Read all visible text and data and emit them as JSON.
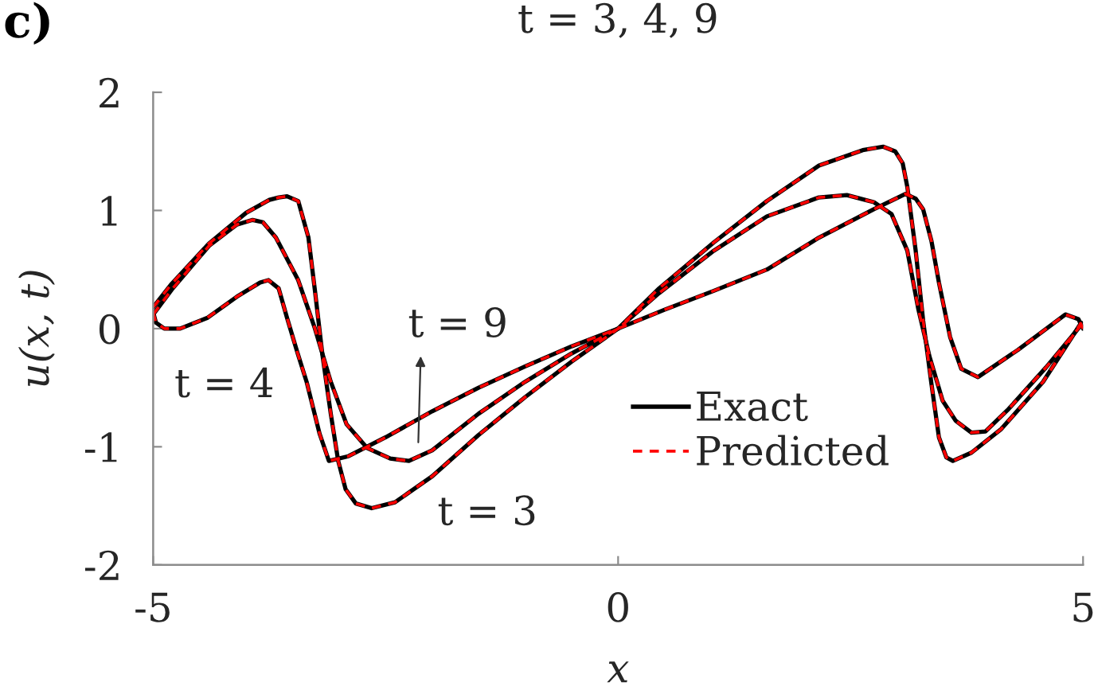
{
  "chart_data": {
    "type": "line",
    "title": "t = 3, 4, 9",
    "xlabel": "x",
    "ylabel": "u(x, t)",
    "xlim": [
      -5,
      5
    ],
    "xticks": [
      -5,
      0,
      5
    ],
    "ylim": [
      -2,
      2
    ],
    "yticks": [
      -2,
      -1,
      0,
      1,
      2
    ],
    "legend": "bottom",
    "annotations": [
      {
        "text": "t = 9",
        "x": -2.15,
        "y": -1.0
      },
      {
        "text": "t = 4",
        "x": -4.71,
        "y": 0.0
      },
      {
        "text": "t = 3",
        "x": -2.0,
        "y": -1.25
      },
      "c)"
    ],
    "series": [
      {
        "name": "Exact",
        "color": "#000000",
        "line_style": "solid",
        "x": [
          -5,
          -4.8,
          -4.4,
          -4.0,
          -3.75,
          -3.65,
          -3.56,
          -3.44,
          -3.33,
          -3.26,
          -3.18,
          -3.09,
          -3.01,
          -2.93,
          -2.82,
          -2.65,
          -2.4,
          -2.0,
          -1.5,
          -1.0,
          -0.5,
          0,
          0.44,
          1.03,
          1.6,
          2.16,
          2.63,
          2.85,
          2.98,
          3.06,
          3.11,
          3.2,
          3.28,
          3.37,
          3.45,
          3.53,
          3.6,
          3.8,
          4.12,
          4.57,
          4.98
        ],
        "values": [
          0.18,
          0.38,
          0.72,
          0.98,
          1.09,
          1.11,
          1.12,
          1.08,
          0.77,
          0.32,
          -0.22,
          -0.72,
          -1.12,
          -1.36,
          -1.48,
          -1.52,
          -1.47,
          -1.25,
          -0.9,
          -0.58,
          -0.28,
          0,
          0.34,
          0.73,
          1.08,
          1.38,
          1.51,
          1.54,
          1.5,
          1.4,
          1.2,
          0.66,
          0.07,
          -0.47,
          -0.92,
          -1.09,
          -1.12,
          -1.05,
          -0.85,
          -0.45,
          0.05
        ]
      },
      {
        "color": "#000000",
        "line_style": "solid",
        "x": [
          -5,
          -4.97,
          -4.88,
          -4.71,
          -4.42,
          -4.1,
          -3.85,
          -3.76,
          -3.65,
          -3.56,
          -3.45,
          -3.35,
          -3.21,
          -3.11,
          -2.9,
          -2.5,
          -2.0,
          -1.5,
          -1.0,
          -0.5,
          0,
          0.5,
          1.03,
          1.6,
          2.16,
          2.75,
          3.09,
          3.2,
          3.28,
          3.37,
          3.45,
          3.57,
          3.69,
          3.87,
          4.3,
          4.81,
          4.95,
          5.0
        ],
        "values": [
          0.14,
          0.05,
          0.0,
          0.0,
          0.09,
          0.27,
          0.39,
          0.41,
          0.34,
          0.09,
          -0.2,
          -0.45,
          -0.89,
          -1.12,
          -1.08,
          -0.92,
          -0.7,
          -0.5,
          -0.32,
          -0.15,
          0,
          0.16,
          0.32,
          0.5,
          0.77,
          1.01,
          1.14,
          1.1,
          1.01,
          0.74,
          0.39,
          -0.07,
          -0.34,
          -0.41,
          -0.18,
          0.12,
          0.08,
          0.0
        ]
      },
      {
        "color": "#000000",
        "line_style": "solid",
        "x": [
          -5,
          -4.8,
          -4.4,
          -4.1,
          -3.93,
          -3.82,
          -3.68,
          -3.44,
          -3.26,
          -3.09,
          -2.92,
          -2.7,
          -2.45,
          -2.25,
          -2.0,
          -1.5,
          -1.0,
          -0.5,
          0,
          0.44,
          1.03,
          1.6,
          2.16,
          2.46,
          2.75,
          2.94,
          3.11,
          3.23,
          3.35,
          3.49,
          3.63,
          3.8,
          3.95,
          4.2,
          4.6,
          4.98
        ],
        "values": [
          0.12,
          0.33,
          0.7,
          0.88,
          0.92,
          0.9,
          0.77,
          0.41,
          0.0,
          -0.45,
          -0.81,
          -1.01,
          -1.1,
          -1.12,
          -1.03,
          -0.72,
          -0.45,
          -0.21,
          0,
          0.3,
          0.66,
          0.95,
          1.11,
          1.13,
          1.07,
          0.97,
          0.66,
          0.16,
          -0.24,
          -0.61,
          -0.78,
          -0.88,
          -0.87,
          -0.68,
          -0.33,
          0.03
        ]
      },
      {
        "name": "Predicted",
        "color": "#ff0000",
        "line_style": "dashed",
        "x": [
          -5,
          -4.8,
          -4.4,
          -4.0,
          -3.75,
          -3.65,
          -3.56,
          -3.44,
          -3.33,
          -3.26,
          -3.18,
          -3.09,
          -3.01,
          -2.93,
          -2.82,
          -2.65,
          -2.4,
          -2.0,
          -1.5,
          -1.0,
          -0.5,
          0,
          0.44,
          1.03,
          1.6,
          2.16,
          2.63,
          2.85,
          2.98,
          3.06,
          3.11,
          3.2,
          3.28,
          3.37,
          3.45,
          3.53,
          3.6,
          3.8,
          4.12,
          4.57,
          4.98
        ],
        "values": [
          0.18,
          0.38,
          0.72,
          0.98,
          1.09,
          1.11,
          1.12,
          1.08,
          0.77,
          0.32,
          -0.22,
          -0.72,
          -1.12,
          -1.36,
          -1.48,
          -1.52,
          -1.47,
          -1.25,
          -0.9,
          -0.58,
          -0.28,
          0,
          0.34,
          0.73,
          1.08,
          1.38,
          1.51,
          1.54,
          1.5,
          1.4,
          1.2,
          0.66,
          0.07,
          -0.47,
          -0.92,
          -1.09,
          -1.12,
          -1.05,
          -0.85,
          -0.45,
          0.05
        ]
      },
      {
        "color": "#ff0000",
        "line_style": "dashed",
        "x": [
          -5,
          -4.97,
          -4.88,
          -4.71,
          -4.42,
          -4.1,
          -3.85,
          -3.76,
          -3.65,
          -3.56,
          -3.45,
          -3.35,
          -3.21,
          -3.11,
          -2.9,
          -2.5,
          -2.0,
          -1.5,
          -1.0,
          -0.5,
          0,
          0.5,
          1.03,
          1.6,
          2.16,
          2.75,
          3.09,
          3.2,
          3.28,
          3.37,
          3.45,
          3.57,
          3.69,
          3.87,
          4.3,
          4.81,
          4.95,
          5.0
        ],
        "values": [
          0.14,
          0.05,
          0.0,
          0.0,
          0.09,
          0.27,
          0.39,
          0.41,
          0.34,
          0.09,
          -0.2,
          -0.45,
          -0.89,
          -1.12,
          -1.08,
          -0.92,
          -0.7,
          -0.5,
          -0.32,
          -0.15,
          0,
          0.16,
          0.32,
          0.5,
          0.77,
          1.01,
          1.14,
          1.1,
          1.01,
          0.74,
          0.39,
          -0.07,
          -0.34,
          -0.41,
          -0.18,
          0.12,
          0.08,
          0.0
        ]
      },
      {
        "color": "#ff0000",
        "line_style": "dashed",
        "x": [
          -5,
          -4.8,
          -4.4,
          -4.1,
          -3.93,
          -3.82,
          -3.68,
          -3.44,
          -3.26,
          -3.09,
          -2.92,
          -2.7,
          -2.45,
          -2.25,
          -2.0,
          -1.5,
          -1.0,
          -0.5,
          0,
          0.44,
          1.03,
          1.6,
          2.16,
          2.46,
          2.75,
          2.94,
          3.11,
          3.23,
          3.35,
          3.49,
          3.63,
          3.8,
          3.95,
          4.2,
          4.6,
          4.98
        ],
        "values": [
          0.12,
          0.33,
          0.7,
          0.88,
          0.92,
          0.9,
          0.77,
          0.41,
          0.0,
          -0.45,
          -0.81,
          -1.01,
          -1.1,
          -1.12,
          -1.03,
          -0.72,
          -0.45,
          -0.21,
          0,
          0.3,
          0.66,
          0.95,
          1.11,
          1.13,
          1.07,
          0.97,
          0.66,
          0.16,
          -0.24,
          -0.61,
          -0.78,
          -0.88,
          -0.87,
          -0.68,
          -0.33,
          0.03
        ]
      }
    ]
  }
}
